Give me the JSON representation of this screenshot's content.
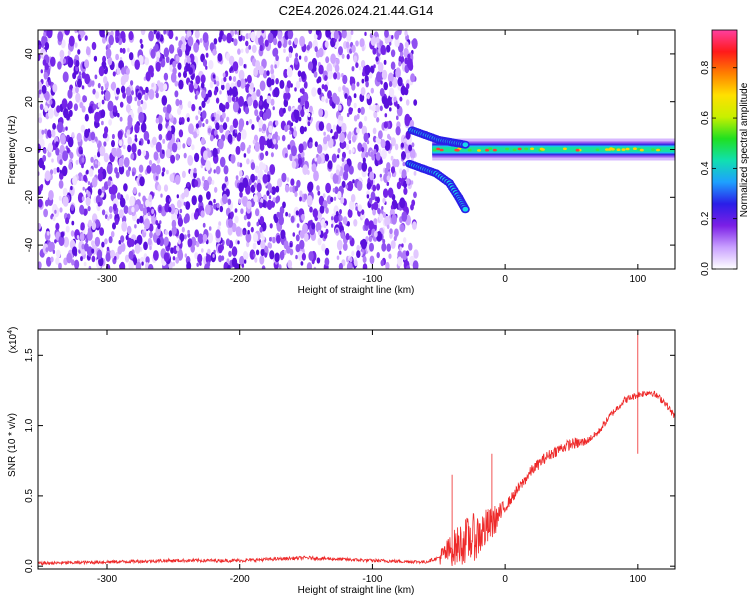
{
  "figure_title": "C2E4.2026.024.21.44.G14",
  "colors": {
    "snr_line": "#ee2a2a",
    "axes": "#000000",
    "background": "#ffffff"
  },
  "chart_data": [
    {
      "type": "heatmap",
      "title": "C2E4.2026.024.21.44.G14",
      "xlabel": "Height of straight line (km)",
      "ylabel": "Frequency (Hz)",
      "xlim": [
        -352,
        128
      ],
      "ylim": [
        -50,
        50
      ],
      "x_ticks": [
        -300,
        -200,
        -100,
        0,
        100
      ],
      "x_tick_labels": [
        "-300",
        "-200",
        "-100",
        "0",
        "100"
      ],
      "y_ticks": [
        -40,
        -20,
        0,
        20,
        40
      ],
      "y_tick_labels": [
        "-40",
        "-20",
        "0",
        "20",
        "40"
      ],
      "noise_region_x": [
        -352,
        -70
      ],
      "tone_frequency_hz": 0,
      "tone_region_x": [
        -70,
        128
      ],
      "branches": [
        {
          "name": "upper",
          "x": [
            -70,
            -60,
            -50,
            -40,
            -30
          ],
          "y": [
            8,
            6,
            4,
            3,
            2
          ]
        },
        {
          "name": "lower",
          "x": [
            -72,
            -62,
            -52,
            -42,
            -35,
            -30
          ],
          "y": [
            -6,
            -8,
            -10,
            -14,
            -20,
            -25
          ]
        }
      ],
      "colorbar": {
        "label": "Normalized spectral amplitude",
        "range": [
          0,
          0.95
        ],
        "ticks": [
          0.0,
          0.2,
          0.4,
          0.6,
          0.8
        ],
        "tick_labels": [
          "0.0",
          "0.2",
          "0.4",
          "0.6",
          "0.8"
        ],
        "colormap": [
          "#ffffff",
          "#c9a0ff",
          "#7b1fe6",
          "#2a1ee8",
          "#1ea0ff",
          "#10e0b0",
          "#20e020",
          "#c8f000",
          "#ffe000",
          "#ff8000",
          "#ff1a1a",
          "#ff3fa0"
        ]
      }
    },
    {
      "type": "line",
      "xlabel": "Height of straight line (km)",
      "ylabel": "SNR (10 * v/v)",
      "y_multiplier_label": "(x10",
      "y_multiplier_exponent": "4",
      "y_multiplier_close": ")",
      "xlim": [
        -352,
        128
      ],
      "ylim": [
        -0.02,
        1.68
      ],
      "x_ticks": [
        -300,
        -200,
        -100,
        0,
        100
      ],
      "x_tick_labels": [
        "-300",
        "-200",
        "-100",
        "0",
        "100"
      ],
      "y_ticks": [
        0.0,
        0.5,
        1.0,
        1.5
      ],
      "y_tick_labels": [
        "0.0",
        "0.5",
        "1.0",
        "1.5"
      ],
      "series": [
        {
          "name": "SNR",
          "x": [
            -352,
            -300,
            -250,
            -200,
            -150,
            -100,
            -60,
            -50,
            -40,
            -30,
            -20,
            -10,
            0,
            10,
            20,
            30,
            40,
            50,
            60,
            70,
            80,
            90,
            100,
            110,
            120,
            128
          ],
          "y": [
            0.02,
            0.03,
            0.04,
            0.04,
            0.06,
            0.04,
            0.03,
            0.06,
            0.12,
            0.18,
            0.22,
            0.3,
            0.42,
            0.55,
            0.68,
            0.77,
            0.83,
            0.87,
            0.88,
            0.95,
            1.08,
            1.18,
            1.22,
            1.24,
            1.17,
            1.06
          ]
        }
      ],
      "spikes": [
        {
          "x": 100,
          "y": 1.66
        },
        {
          "x": 100,
          "y": 0.8
        },
        {
          "x": -40,
          "y": 0.65
        },
        {
          "x": -10,
          "y": 0.8
        }
      ]
    }
  ]
}
